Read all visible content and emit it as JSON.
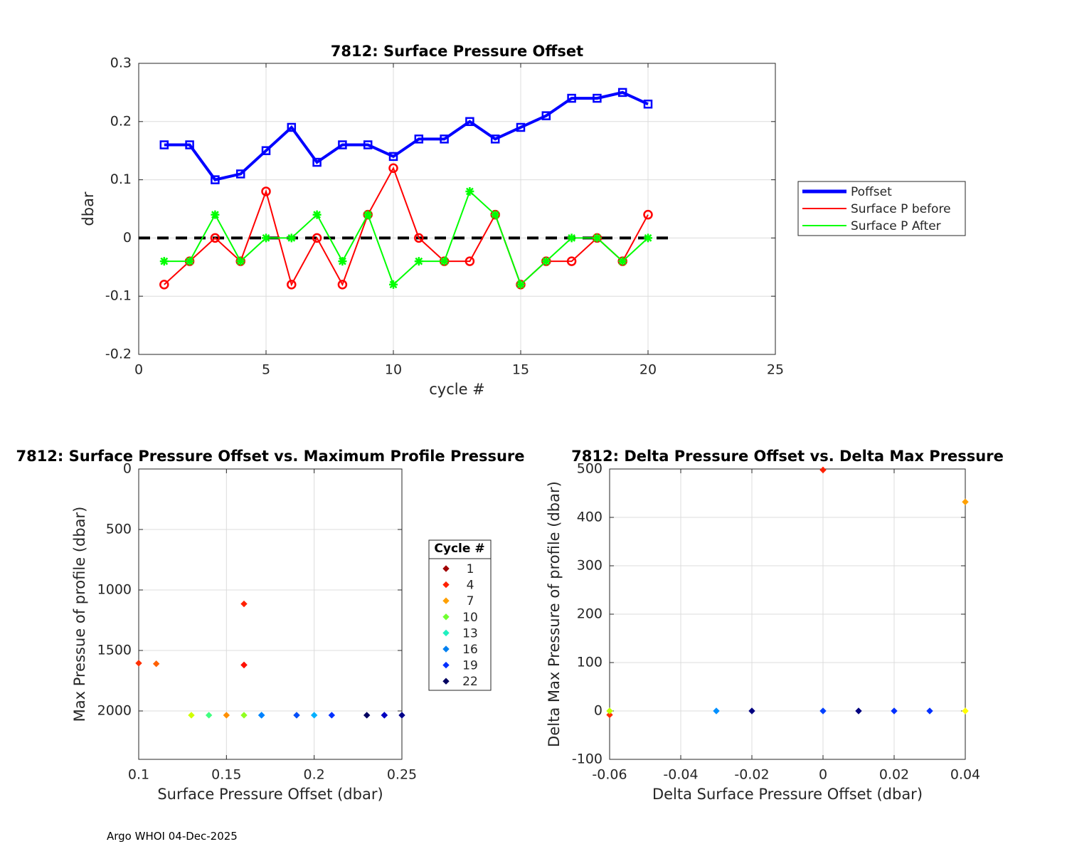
{
  "footer": "Argo WHOI 04-Dec-2025",
  "chart_data": [
    {
      "type": "line",
      "title": "7812: Surface Pressure Offset",
      "xlabel": "cycle #",
      "ylabel": "dbar",
      "xlim": [
        0,
        25
      ],
      "ylim": [
        -0.2,
        0.3
      ],
      "xticks": [
        0,
        5,
        10,
        15,
        20,
        25
      ],
      "yticks": [
        -0.2,
        -0.1,
        0,
        0.1,
        0.2,
        0.3
      ],
      "grid": true,
      "legend_position": "outside-right",
      "x": [
        1,
        2,
        3,
        4,
        5,
        6,
        7,
        8,
        9,
        10,
        11,
        12,
        13,
        14,
        15,
        16,
        17,
        18,
        19,
        20
      ],
      "series": [
        {
          "name": "Poffset",
          "color": "#0000ff",
          "marker": "square",
          "values": [
            0.16,
            0.16,
            0.1,
            0.11,
            0.15,
            0.19,
            0.13,
            0.16,
            0.16,
            0.14,
            0.17,
            0.17,
            0.2,
            0.17,
            0.19,
            0.21,
            0.24,
            0.24,
            0.25,
            0.23
          ]
        },
        {
          "name": "Surface P before",
          "color": "#ff0000",
          "marker": "circle",
          "values": [
            -0.08,
            -0.04,
            0.0,
            -0.04,
            0.08,
            -0.08,
            0.0,
            -0.08,
            0.04,
            0.12,
            0.0,
            -0.04,
            -0.04,
            0.04,
            -0.08,
            -0.04,
            -0.04,
            0.0,
            -0.04,
            0.04
          ]
        },
        {
          "name": "Surface P After",
          "color": "#00ff00",
          "marker": "star",
          "values": [
            -0.04,
            -0.04,
            0.04,
            -0.04,
            0.0,
            0.0,
            0.04,
            -0.04,
            0.04,
            -0.08,
            -0.04,
            -0.04,
            0.08,
            0.04,
            -0.08,
            -0.04,
            0.0,
            0.0,
            -0.04,
            0.0
          ]
        }
      ],
      "reference_line": {
        "y": 0,
        "x_range": [
          0,
          21
        ],
        "style": "dashed",
        "color": "#000000"
      }
    },
    {
      "type": "scatter",
      "title": "7812: Surface Pressure Offset vs. Maximum Profile Pressure",
      "xlabel": "Surface Pressure Offset (dbar)",
      "ylabel": "Max Pressue of profile (dbar)",
      "xlim": [
        0.1,
        0.25
      ],
      "ylim": [
        0,
        2400
      ],
      "y_reversed": true,
      "xticks": [
        0.1,
        0.15,
        0.2,
        0.25
      ],
      "xtick_labels": [
        "0.1",
        "0.15",
        "0.2",
        "0.25"
      ],
      "yticks": [
        0,
        500,
        1000,
        1500,
        2000
      ],
      "grid": true,
      "legend_title": "Cycle #",
      "legend": [
        {
          "label": "1",
          "color": "#a00000"
        },
        {
          "label": "4",
          "color": "#ff2000"
        },
        {
          "label": "7",
          "color": "#ffa000"
        },
        {
          "label": "10",
          "color": "#70ff30"
        },
        {
          "label": "13",
          "color": "#20f0c0"
        },
        {
          "label": "16",
          "color": "#0080f0"
        },
        {
          "label": "19",
          "color": "#0030ff"
        },
        {
          "label": "22",
          "color": "#000060"
        }
      ],
      "points": [
        {
          "x": 0.16,
          "y": 1620,
          "color": "#cc0000"
        },
        {
          "x": 0.16,
          "y": 1620,
          "color": "#ff1000"
        },
        {
          "x": 0.1,
          "y": 1605,
          "color": "#ff3000"
        },
        {
          "x": 0.11,
          "y": 1610,
          "color": "#ff6000"
        },
        {
          "x": 0.15,
          "y": 2035,
          "color": "#ff9000"
        },
        {
          "x": 0.19,
          "y": 2035,
          "color": "#ffc000"
        },
        {
          "x": 0.13,
          "y": 2035,
          "color": "#d0ff00"
        },
        {
          "x": 0.16,
          "y": 1115,
          "color": "#ff2000"
        },
        {
          "x": 0.16,
          "y": 2035,
          "color": "#90ff20"
        },
        {
          "x": 0.14,
          "y": 2035,
          "color": "#40ff80"
        },
        {
          "x": 0.17,
          "y": 2035,
          "color": "#20f0c0"
        },
        {
          "x": 0.17,
          "y": 2035,
          "color": "#00c0ff"
        },
        {
          "x": 0.2,
          "y": 2035,
          "color": "#00b0ff"
        },
        {
          "x": 0.17,
          "y": 2035,
          "color": "#0080ff"
        },
        {
          "x": 0.19,
          "y": 2035,
          "color": "#0050ff"
        },
        {
          "x": 0.21,
          "y": 2035,
          "color": "#0030ff"
        },
        {
          "x": 0.24,
          "y": 2035,
          "color": "#0010e0"
        },
        {
          "x": 0.24,
          "y": 2035,
          "color": "#0000c0"
        },
        {
          "x": 0.25,
          "y": 2035,
          "color": "#00008a"
        },
        {
          "x": 0.23,
          "y": 2035,
          "color": "#000060"
        }
      ]
    },
    {
      "type": "scatter",
      "title": "7812: Delta Pressure Offset vs. Delta Max Pressure",
      "xlabel": "Delta Surface Pressure Offset (dbar)",
      "ylabel": "Delta Max Pressure of profile (dbar)",
      "xlim": [
        -0.06,
        0.04
      ],
      "ylim": [
        -100,
        500
      ],
      "xticks": [
        -0.06,
        -0.04,
        -0.02,
        0,
        0.02,
        0.04
      ],
      "xtick_labels": [
        "-0.06",
        "-0.04",
        "-0.02",
        "0",
        "0.02",
        "0.04"
      ],
      "yticks": [
        -100,
        0,
        100,
        200,
        300,
        400,
        500
      ],
      "grid": true,
      "points": [
        {
          "x": -0.06,
          "y": -8,
          "color": "#ff3000"
        },
        {
          "x": -0.06,
          "y": 0,
          "color": "#c0ff00"
        },
        {
          "x": 0.0,
          "y": 498,
          "color": "#ff2000"
        },
        {
          "x": 0.04,
          "y": 432,
          "color": "#ffa000"
        },
        {
          "x": 0.04,
          "y": 0,
          "color": "#ffff00"
        },
        {
          "x": -0.03,
          "y": 0,
          "color": "#0090ff"
        },
        {
          "x": -0.02,
          "y": 0,
          "color": "#000080"
        },
        {
          "x": 0.0,
          "y": 0,
          "color": "#0040ff"
        },
        {
          "x": 0.01,
          "y": 0,
          "color": "#000080"
        },
        {
          "x": 0.02,
          "y": 0,
          "color": "#0030ff"
        },
        {
          "x": 0.03,
          "y": 0,
          "color": "#0030ff"
        }
      ]
    }
  ]
}
